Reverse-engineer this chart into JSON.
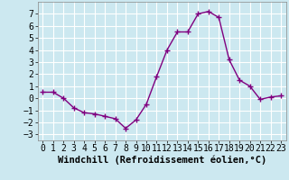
{
  "x": [
    0,
    1,
    2,
    3,
    4,
    5,
    6,
    7,
    8,
    9,
    10,
    11,
    12,
    13,
    14,
    15,
    16,
    17,
    18,
    19,
    20,
    21,
    22,
    23
  ],
  "y": [
    0.5,
    0.5,
    0.0,
    -0.8,
    -1.2,
    -1.3,
    -1.5,
    -1.7,
    -2.5,
    -1.8,
    -0.5,
    1.8,
    4.0,
    5.5,
    5.5,
    7.0,
    7.2,
    6.7,
    3.2,
    1.5,
    1.0,
    -0.1,
    0.1,
    0.2
  ],
  "line_color": "#800080",
  "marker": "+",
  "marker_color": "#800080",
  "background_color": "#cce8f0",
  "grid_color": "#ffffff",
  "xlabel": "Windchill (Refroidissement éolien,°C)",
  "xlim": [
    -0.5,
    23.5
  ],
  "ylim": [
    -3.5,
    8.0
  ],
  "yticks": [
    -3,
    -2,
    -1,
    0,
    1,
    2,
    3,
    4,
    5,
    6,
    7
  ],
  "xticks": [
    0,
    1,
    2,
    3,
    4,
    5,
    6,
    7,
    8,
    9,
    10,
    11,
    12,
    13,
    14,
    15,
    16,
    17,
    18,
    19,
    20,
    21,
    22,
    23
  ],
  "xlabel_fontsize": 7.5,
  "tick_fontsize": 7,
  "line_width": 1.0,
  "marker_size": 4
}
